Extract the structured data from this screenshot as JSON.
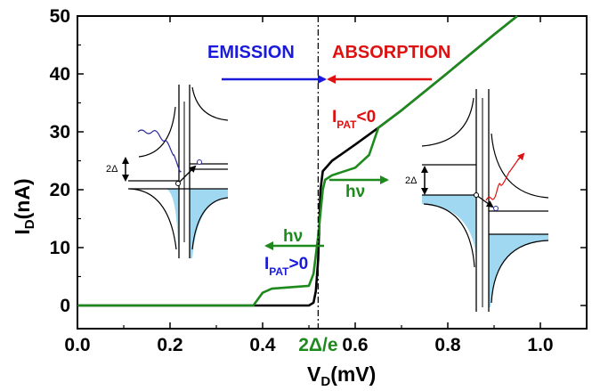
{
  "chart_data": {
    "type": "line",
    "xlabel": "V",
    "xlabel_sub": "D",
    "xlabel_unit": "(mV)",
    "ylabel": "I",
    "ylabel_sub": "D",
    "ylabel_unit": "(nA)",
    "xlim": [
      0.0,
      1.1
    ],
    "ylim": [
      -4,
      50
    ],
    "x_ticks": [
      0.0,
      0.2,
      0.4,
      0.6,
      0.8,
      1.0
    ],
    "x_tick_labels": [
      "0.0",
      "0.2",
      "0.4",
      "0.6",
      "0.8",
      "1.0"
    ],
    "y_ticks": [
      0,
      10,
      20,
      30,
      40,
      50
    ],
    "y_tick_labels": [
      "0",
      "10",
      "20",
      "30",
      "40",
      "50"
    ],
    "grid": false,
    "gap_marker": {
      "x": 0.52,
      "label": "2Δ/e",
      "color": "#1e8a1e"
    },
    "series": [
      {
        "color": "#000000",
        "x": [
          0.0,
          0.5,
          0.51,
          0.515,
          0.52,
          0.525,
          0.53,
          0.55,
          0.6,
          0.65,
          0.7,
          0.8,
          0.9,
          0.95
        ],
        "y": [
          0.0,
          0.0,
          0.5,
          2.5,
          8,
          20,
          23.2,
          25.0,
          27.8,
          30.7,
          33.7,
          40.2,
          46.8,
          50.0
        ]
      },
      {
        "color": "#1e8a1e",
        "x": [
          0.0,
          0.38,
          0.4,
          0.42,
          0.5,
          0.51,
          0.52,
          0.53,
          0.535,
          0.55,
          0.6,
          0.63,
          0.65,
          0.7,
          0.8,
          0.9,
          0.95
        ],
        "y": [
          0.0,
          0.0,
          2.2,
          2.9,
          3.4,
          5.5,
          12.0,
          20.0,
          21.7,
          22.5,
          23.8,
          26.0,
          30.7,
          33.7,
          40.2,
          46.8,
          50.0
        ]
      }
    ],
    "annotations": {
      "emission": {
        "text": "EMISSION",
        "color": "#1a1adc"
      },
      "absorption": {
        "text": "ABSORPTION",
        "color": "#e01010"
      },
      "ipat_neg": {
        "main": "I",
        "sub": "PAT",
        "rest": "<0",
        "color": "#e01010"
      },
      "ipat_pos": {
        "main": "I",
        "sub": "PAT",
        "rest": ">0",
        "color": "#1a1adc"
      },
      "hv_left": {
        "text": "hν",
        "color": "#1e8a1e"
      },
      "hv_right": {
        "text": "hν",
        "color": "#1e8a1e"
      },
      "gap_left": {
        "text": "2Δ"
      },
      "gap_right": {
        "text": "2Δ"
      }
    }
  }
}
